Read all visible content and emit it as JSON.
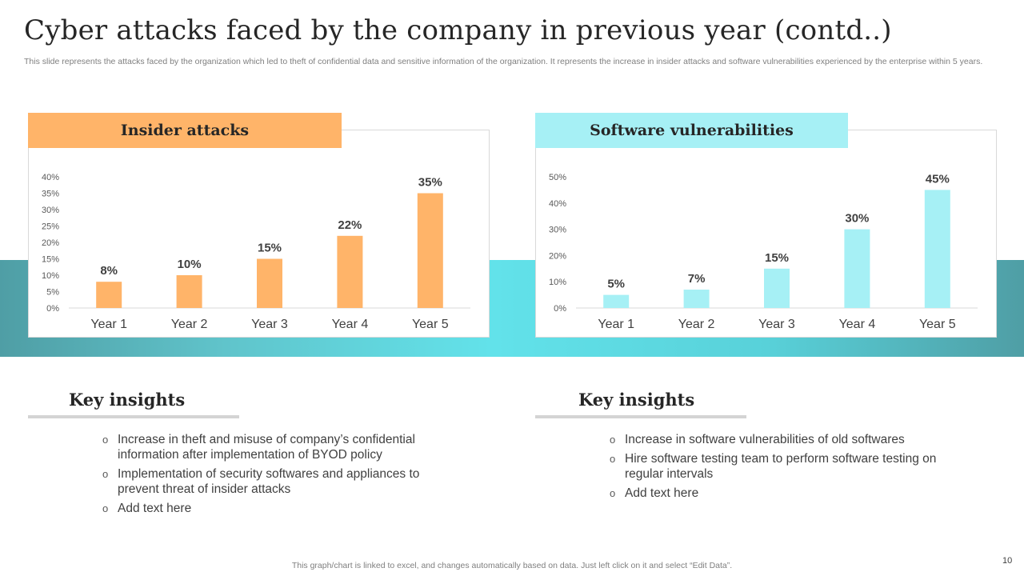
{
  "slide": {
    "title": "Cyber attacks faced by the company in previous year (contd..)",
    "subtitle": "This slide represents the attacks faced by the organization which led to theft of confidential data and sensitive information of the organization. It represents the increase in insider attacks and software vulnerabilities experienced by the enterprise within 5 years.",
    "footnote": "This graph/chart is linked to excel,  and changes automatically based on data. Just left click on it and select “Edit Data”.",
    "page_number": "10"
  },
  "colors": {
    "insider_bar": "#ffb469",
    "software_bar": "#a6f0f5",
    "teal_band": "#62e2ea"
  },
  "chart_data": [
    {
      "type": "bar",
      "title": "Insider attacks",
      "categories": [
        "Year 1",
        "Year 2",
        "Year 3",
        "Year 4",
        "Year 5"
      ],
      "values": [
        8,
        10,
        15,
        22,
        35
      ],
      "data_labels": [
        "8%",
        "10%",
        "15%",
        "22%",
        "35%"
      ],
      "y_ticks": [
        "0%",
        "5%",
        "10%",
        "15%",
        "20%",
        "25%",
        "30%",
        "35%",
        "40%"
      ],
      "ylim": [
        0,
        40
      ],
      "xlabel": "",
      "ylabel": "",
      "grid": false,
      "color": "#ffb469"
    },
    {
      "type": "bar",
      "title": "Software  vulnerabilities",
      "categories": [
        "Year 1",
        "Year 2",
        "Year 3",
        "Year 4",
        "Year 5"
      ],
      "values": [
        5,
        7,
        15,
        30,
        45
      ],
      "data_labels": [
        "5%",
        "7%",
        "15%",
        "30%",
        "45%"
      ],
      "y_ticks": [
        "0%",
        "10%",
        "20%",
        "30%",
        "40%",
        "50%"
      ],
      "ylim": [
        0,
        50
      ],
      "xlabel": "",
      "ylabel": "",
      "grid": false,
      "color": "#a6f0f5"
    }
  ],
  "insights": {
    "left": {
      "title": "Key insights",
      "bullet": "o",
      "items": [
        "Increase  in theft  and misuse of company’s confidential information after implementation of BYOD policy",
        "Implementation  of security softwares and appliances to prevent threat of insider attacks",
        "Add text here"
      ]
    },
    "right": {
      "title": "Key insights",
      "bullet": "o",
      "items": [
        "Increase  in software vulnerabilities of old softwares",
        "Hire software testing team to perform software testing on regular intervals",
        "Add text here"
      ]
    }
  }
}
